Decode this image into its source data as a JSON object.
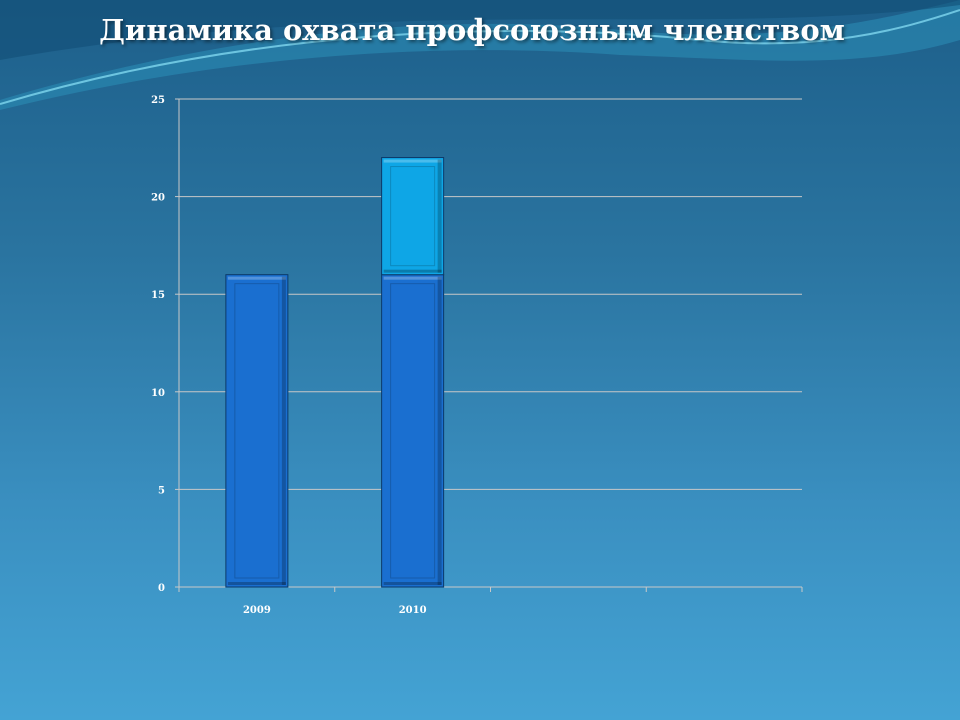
{
  "chart_data": {
    "type": "bar",
    "stacked": true,
    "title": "Динамика охвата профсоюзным членством",
    "categories": [
      "2009",
      "2010",
      "",
      ""
    ],
    "series": [
      {
        "values": [
          16,
          16,
          null,
          null
        ],
        "color": "#1a6fd0"
      },
      {
        "values": [
          0,
          6,
          null,
          null
        ],
        "color": "#0ea6e6"
      }
    ],
    "ylim": [
      0,
      25
    ],
    "yticks": [
      "0",
      "5",
      "10",
      "15",
      "20",
      "25"
    ],
    "grid": true,
    "legend": "none"
  }
}
